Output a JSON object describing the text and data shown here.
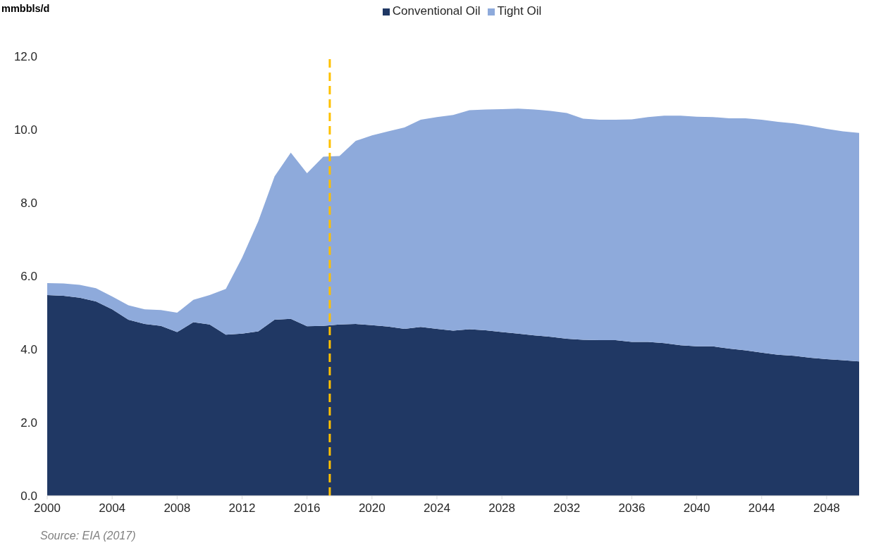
{
  "chart_data": {
    "type": "area",
    "stacked": true,
    "ylabel": "mmbbls/d",
    "x": [
      2000,
      2001,
      2002,
      2003,
      2004,
      2005,
      2006,
      2007,
      2008,
      2009,
      2010,
      2011,
      2012,
      2013,
      2014,
      2015,
      2016,
      2017,
      2018,
      2019,
      2020,
      2021,
      2022,
      2023,
      2024,
      2025,
      2026,
      2027,
      2028,
      2029,
      2030,
      2031,
      2032,
      2033,
      2034,
      2035,
      2036,
      2037,
      2038,
      2039,
      2040,
      2041,
      2042,
      2043,
      2044,
      2045,
      2046,
      2047,
      2048,
      2049,
      2050
    ],
    "xlim": [
      2000,
      2050
    ],
    "xticks": [
      2000,
      2004,
      2008,
      2012,
      2016,
      2020,
      2024,
      2028,
      2032,
      2036,
      2040,
      2044,
      2048
    ],
    "ylim": [
      0,
      12
    ],
    "yticks": [
      {
        "value": 0,
        "label": "0.0"
      },
      {
        "value": 2,
        "label": "2.0"
      },
      {
        "value": 4,
        "label": "4.0"
      },
      {
        "value": 6,
        "label": "6.0"
      },
      {
        "value": 8,
        "label": "8.0"
      },
      {
        "value": 10,
        "label": "10.0"
      },
      {
        "value": 12,
        "label": "12.0"
      }
    ],
    "series": [
      {
        "name": "Conventional Oil",
        "color": "#203864",
        "values": [
          5.48,
          5.46,
          5.41,
          5.31,
          5.09,
          4.81,
          4.69,
          4.64,
          4.47,
          4.74,
          4.68,
          4.4,
          4.43,
          4.49,
          4.81,
          4.83,
          4.63,
          4.64,
          4.68,
          4.69,
          4.66,
          4.62,
          4.56,
          4.61,
          4.56,
          4.51,
          4.55,
          4.52,
          4.47,
          4.43,
          4.38,
          4.34,
          4.29,
          4.26,
          4.25,
          4.25,
          4.2,
          4.2,
          4.17,
          4.11,
          4.08,
          4.08,
          4.02,
          3.97,
          3.91,
          3.85,
          3.82,
          3.77,
          3.73,
          3.7,
          3.67
        ]
      },
      {
        "name": "Tight Oil",
        "color": "#8eaadb",
        "values": [
          0.33,
          0.34,
          0.35,
          0.36,
          0.35,
          0.39,
          0.4,
          0.43,
          0.53,
          0.61,
          0.8,
          1.25,
          2.07,
          3.01,
          3.91,
          4.54,
          4.18,
          4.62,
          4.6,
          5.0,
          5.18,
          5.33,
          5.5,
          5.66,
          5.78,
          5.89,
          5.98,
          6.03,
          6.09,
          6.14,
          6.17,
          6.17,
          6.16,
          6.04,
          6.02,
          6.02,
          6.08,
          6.14,
          6.21,
          6.27,
          6.27,
          6.26,
          6.29,
          6.34,
          6.36,
          6.36,
          6.35,
          6.33,
          6.29,
          6.25,
          6.24
        ]
      }
    ],
    "legend": "top",
    "ref_lines": [
      {
        "axis": "x",
        "value": 2017.4,
        "color": "#ffc000",
        "line_style": "dashed"
      }
    ],
    "annotations": [
      "Source: EIA (2017)"
    ]
  }
}
